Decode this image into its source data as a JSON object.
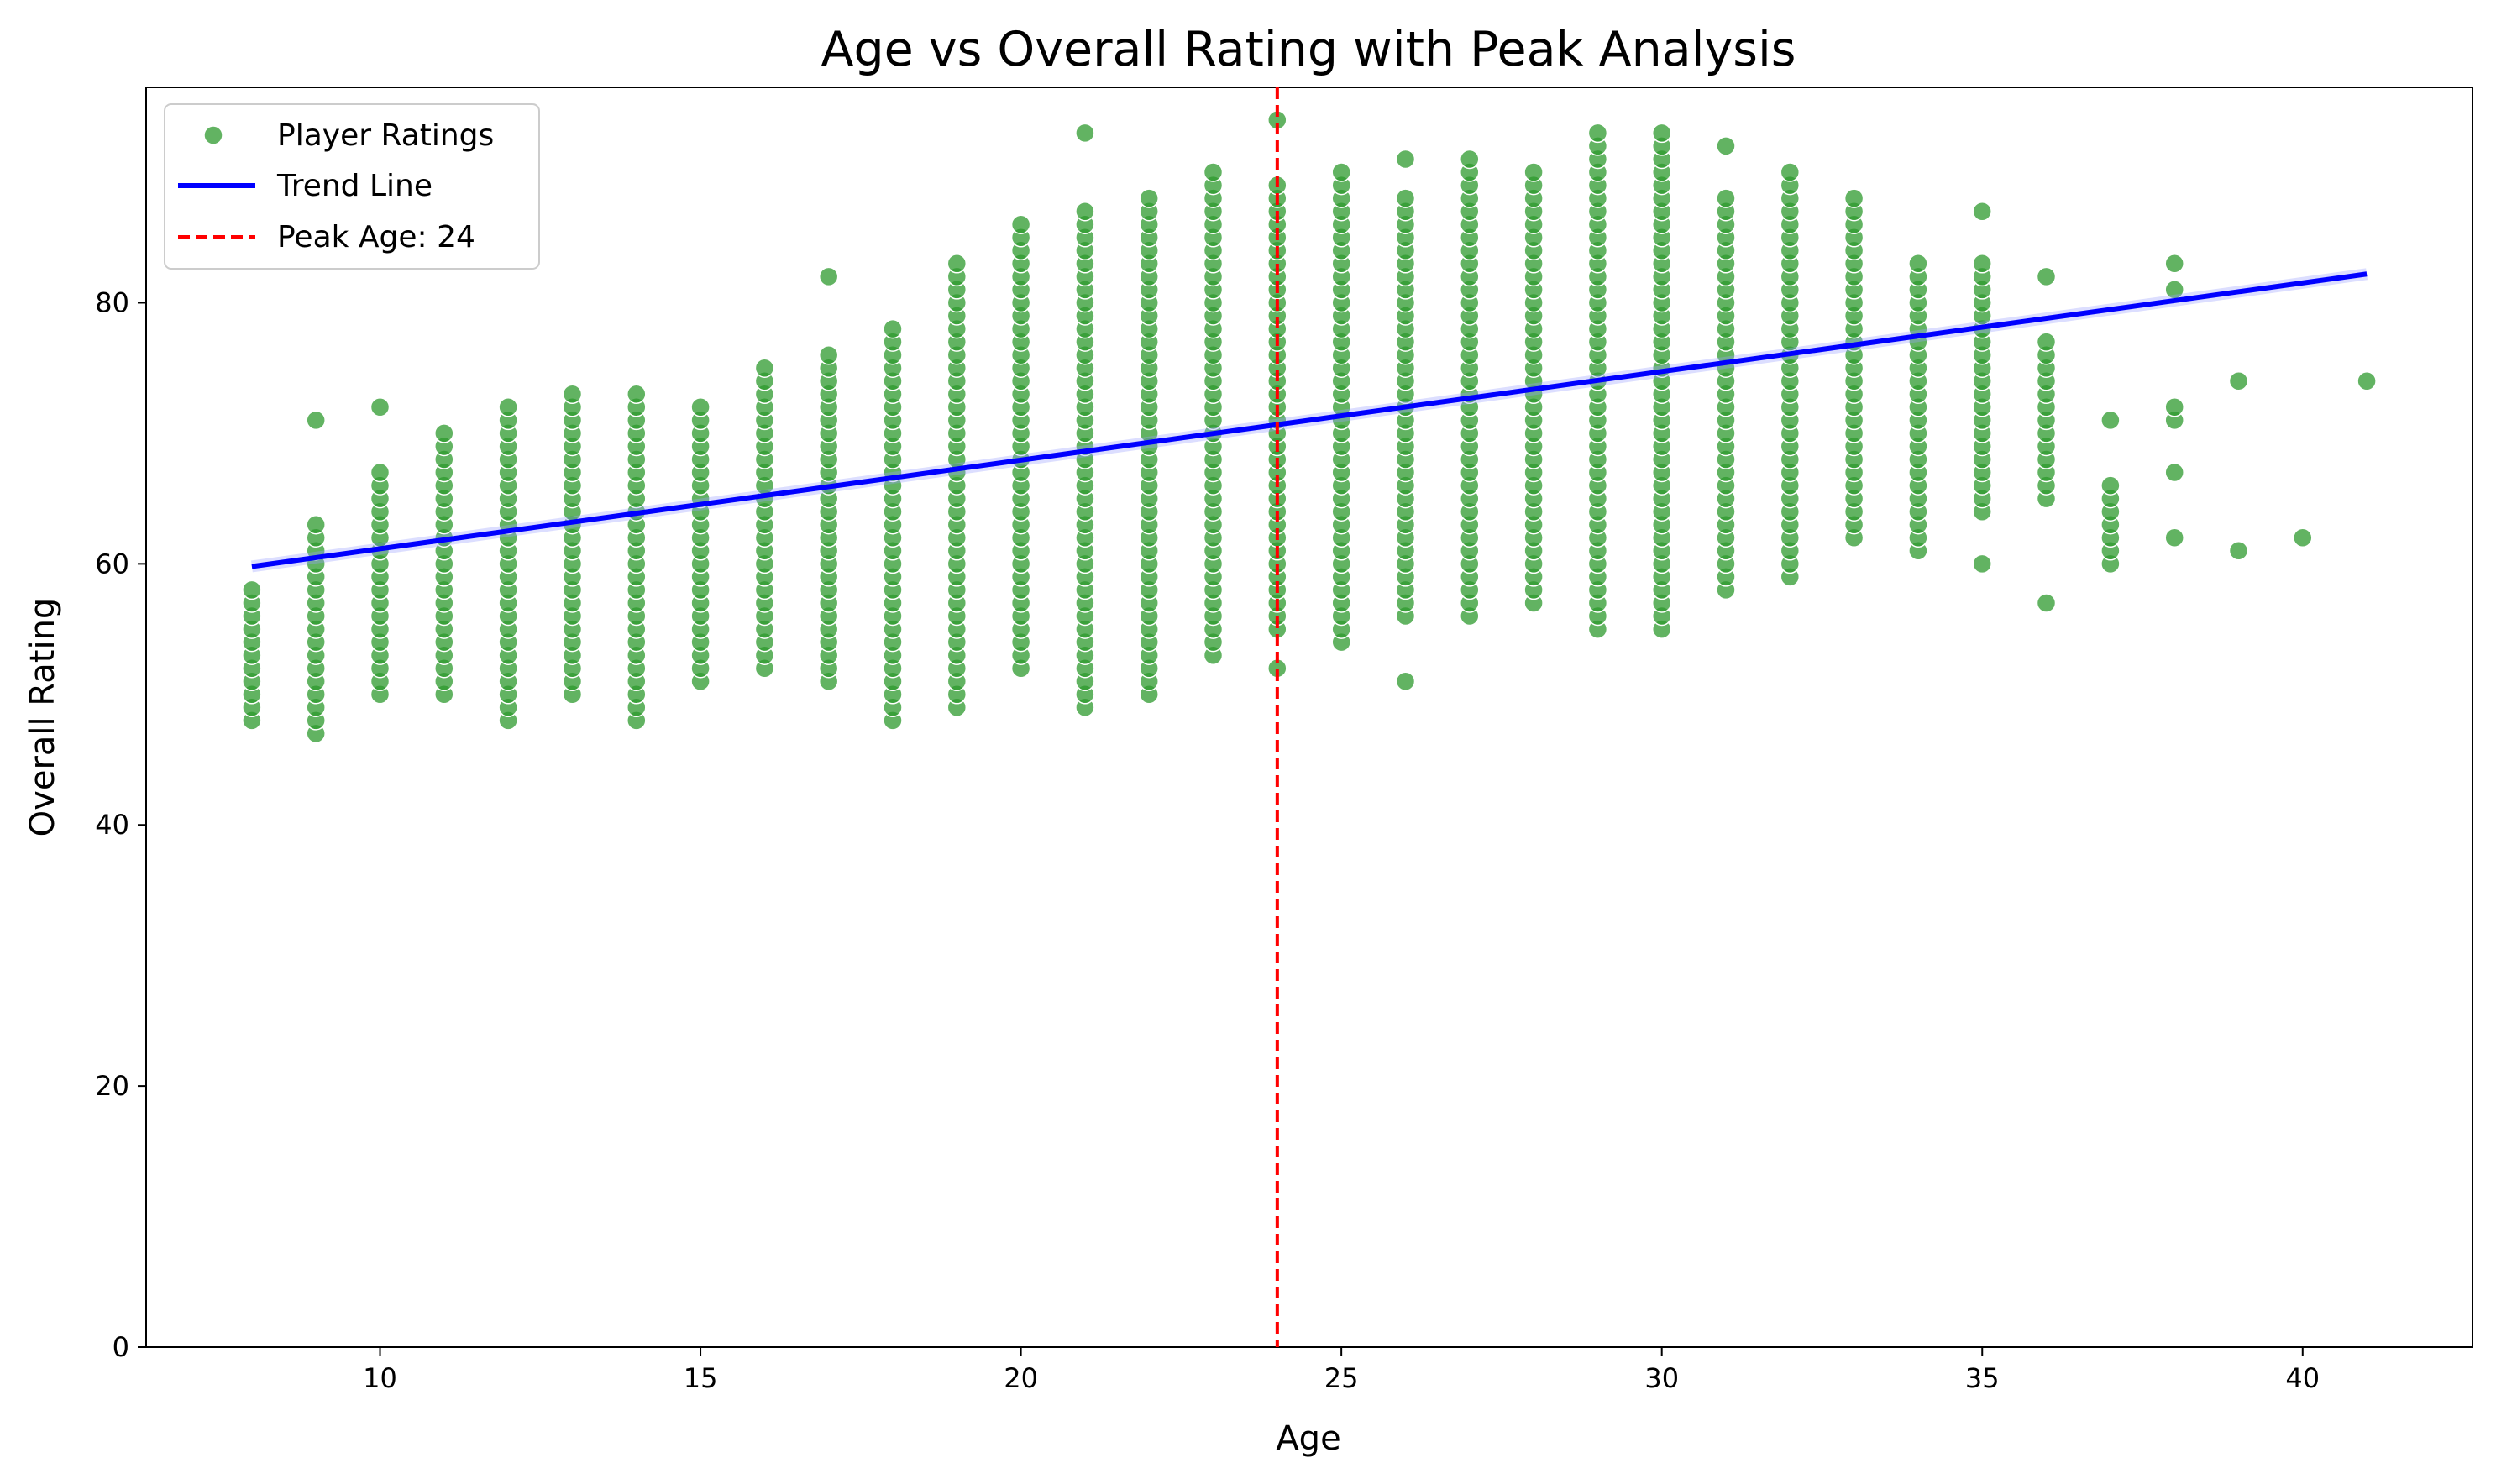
{
  "chart_data": {
    "type": "scatter",
    "title": "Age vs Overall Rating with Peak Analysis",
    "xlabel": "Age",
    "ylabel": "Overall Rating",
    "xlim": [
      6.35,
      42.65
    ],
    "ylim": [
      0,
      96.5
    ],
    "xticks": [
      10,
      15,
      20,
      25,
      30,
      35,
      40
    ],
    "yticks": [
      0,
      20,
      40,
      60,
      80
    ],
    "grid": false,
    "legend_position": "top-left",
    "colors": {
      "scatter": "#2e9a2e",
      "trend": "#0000ff",
      "peak": "#ff0000"
    },
    "legend": [
      {
        "label": "Player Ratings",
        "kind": "marker"
      },
      {
        "label": "Trend Line",
        "kind": "line"
      },
      {
        "label": "Peak Age: 24",
        "kind": "dashed"
      }
    ],
    "trend_line": {
      "x": [
        8,
        41
      ],
      "y": [
        59.8,
        82.2
      ]
    },
    "peak_age": 24,
    "age_groups": [
      {
        "age": 8,
        "min": 48,
        "max": 58,
        "extra": []
      },
      {
        "age": 9,
        "min": 47,
        "max": 63,
        "extra": [
          71
        ]
      },
      {
        "age": 10,
        "min": 50,
        "max": 67,
        "extra": [
          72
        ]
      },
      {
        "age": 11,
        "min": 50,
        "max": 70,
        "extra": []
      },
      {
        "age": 12,
        "min": 48,
        "max": 72,
        "extra": []
      },
      {
        "age": 13,
        "min": 50,
        "max": 73,
        "extra": []
      },
      {
        "age": 14,
        "min": 48,
        "max": 73,
        "extra": []
      },
      {
        "age": 15,
        "min": 51,
        "max": 72,
        "extra": []
      },
      {
        "age": 16,
        "min": 52,
        "max": 75,
        "extra": []
      },
      {
        "age": 17,
        "min": 51,
        "max": 76,
        "extra": [
          82
        ]
      },
      {
        "age": 18,
        "min": 48,
        "max": 78,
        "extra": []
      },
      {
        "age": 19,
        "min": 49,
        "max": 83,
        "extra": []
      },
      {
        "age": 20,
        "min": 52,
        "max": 86,
        "extra": []
      },
      {
        "age": 21,
        "min": 49,
        "max": 87,
        "extra": [
          93
        ]
      },
      {
        "age": 22,
        "min": 50,
        "max": 88,
        "extra": []
      },
      {
        "age": 23,
        "min": 53,
        "max": 90,
        "extra": []
      },
      {
        "age": 24,
        "min": 55,
        "max": 89,
        "extra": [
          52,
          94
        ]
      },
      {
        "age": 25,
        "min": 54,
        "max": 90,
        "extra": []
      },
      {
        "age": 26,
        "min": 56,
        "max": 88,
        "extra": [
          51,
          91
        ]
      },
      {
        "age": 27,
        "min": 56,
        "max": 91,
        "extra": []
      },
      {
        "age": 28,
        "min": 57,
        "max": 90,
        "extra": []
      },
      {
        "age": 29,
        "min": 55,
        "max": 93,
        "extra": []
      },
      {
        "age": 30,
        "min": 55,
        "max": 93,
        "extra": []
      },
      {
        "age": 31,
        "min": 58,
        "max": 88,
        "extra": [
          92
        ]
      },
      {
        "age": 32,
        "min": 59,
        "max": 90,
        "extra": []
      },
      {
        "age": 33,
        "min": 62,
        "max": 88,
        "extra": []
      },
      {
        "age": 34,
        "min": 61,
        "max": 83,
        "extra": []
      },
      {
        "age": 35,
        "min": 64,
        "max": 83,
        "extra": [
          60,
          87
        ]
      },
      {
        "age": 36,
        "min": 65,
        "max": 77,
        "extra": [
          57,
          82
        ]
      },
      {
        "age": 37,
        "min": 60,
        "max": 66,
        "extra": [
          71
        ]
      },
      {
        "age": 38,
        "min": 71,
        "max": 72,
        "extra": [
          62,
          67,
          81,
          83
        ]
      },
      {
        "age": 39,
        "min": 61,
        "max": 61,
        "extra": [
          74
        ]
      },
      {
        "age": 40,
        "min": 62,
        "max": 62,
        "extra": []
      },
      {
        "age": 41,
        "min": 74,
        "max": 74,
        "extra": []
      }
    ]
  }
}
